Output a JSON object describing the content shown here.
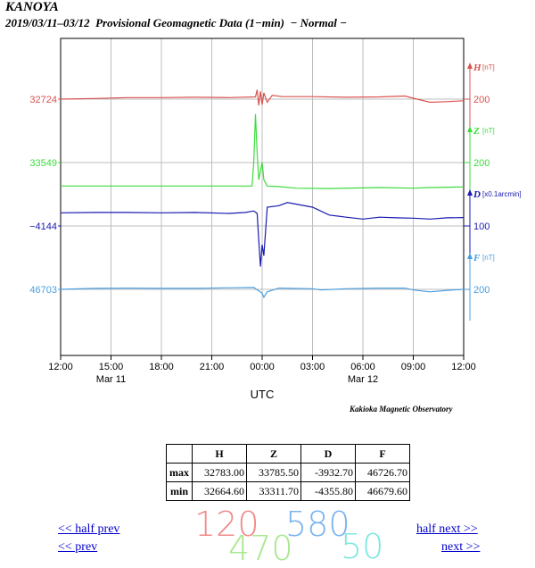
{
  "header": {
    "station": "KANOYA",
    "subtitle": "2019/03/11–03/12  Provisional Geomagnetic Data (1−min)  − Normal −"
  },
  "chart_data": {
    "type": "line",
    "xlabel": "UTC",
    "x_ticks": [
      "12:00",
      "15:00",
      "18:00",
      "21:00",
      "00:00",
      "03:00",
      "06:00",
      "09:00",
      "12:00"
    ],
    "x_date_labels": [
      {
        "tick_index": 1,
        "label": "Mar 11"
      },
      {
        "tick_index": 6,
        "label": "Mar 12"
      }
    ],
    "x_range_hours": [
      0,
      24
    ],
    "series": [
      {
        "name": "H",
        "unit": "[nT]",
        "baseline_label": "32724",
        "scale_label": "200",
        "color": "#d9534f",
        "points": [
          [
            0,
            0.0
          ],
          [
            2,
            2
          ],
          [
            4,
            5
          ],
          [
            6,
            5
          ],
          [
            8,
            6
          ],
          [
            10,
            5
          ],
          [
            11.6,
            7
          ],
          [
            11.7,
            30
          ],
          [
            11.8,
            -20
          ],
          [
            11.9,
            25
          ],
          [
            12.0,
            -18
          ],
          [
            12.1,
            20
          ],
          [
            12.3,
            -10
          ],
          [
            12.6,
            12
          ],
          [
            13.2,
            8
          ],
          [
            15,
            8
          ],
          [
            17,
            6
          ],
          [
            19,
            7
          ],
          [
            20.5,
            10
          ],
          [
            21,
            3
          ],
          [
            22,
            -10
          ],
          [
            23,
            -8
          ],
          [
            24,
            -5
          ]
        ]
      },
      {
        "name": "Z",
        "unit": "[nT]",
        "baseline_label": "33549",
        "scale_label": "200",
        "color": "#3ddb3d",
        "points": [
          [
            0,
            -75
          ],
          [
            4,
            -75
          ],
          [
            8,
            -75
          ],
          [
            11.4,
            -75
          ],
          [
            11.5,
            0
          ],
          [
            11.6,
            155
          ],
          [
            11.7,
            30
          ],
          [
            11.8,
            -55
          ],
          [
            12.0,
            0
          ],
          [
            12.1,
            -55
          ],
          [
            12.3,
            -75
          ],
          [
            13,
            -77
          ],
          [
            14,
            -82
          ],
          [
            16,
            -83
          ],
          [
            19,
            -80
          ],
          [
            21,
            -82
          ],
          [
            22,
            -80
          ],
          [
            24,
            -78
          ]
        ]
      },
      {
        "name": "D",
        "unit": "[x0.1arcmin]",
        "baseline_label": "−4144",
        "scale_label": "100",
        "color": "#1a1ab0",
        "points": [
          [
            0,
            42
          ],
          [
            2,
            43
          ],
          [
            4,
            43
          ],
          [
            6,
            42
          ],
          [
            8,
            43
          ],
          [
            10,
            40
          ],
          [
            11,
            43
          ],
          [
            11.5,
            48
          ],
          [
            11.7,
            40
          ],
          [
            11.8,
            -45
          ],
          [
            11.9,
            -130
          ],
          [
            12.0,
            -60
          ],
          [
            12.1,
            -95
          ],
          [
            12.3,
            60
          ],
          [
            13,
            65
          ],
          [
            13.5,
            75
          ],
          [
            15,
            60
          ],
          [
            16,
            35
          ],
          [
            17,
            28
          ],
          [
            18,
            22
          ],
          [
            19,
            28
          ],
          [
            20,
            26
          ],
          [
            21,
            25
          ],
          [
            22,
            22
          ],
          [
            23,
            26
          ],
          [
            24,
            27
          ]
        ]
      },
      {
        "name": "F",
        "unit": "[nT]",
        "baseline_label": "46703",
        "scale_label": "200",
        "color": "#4a9ee0",
        "points": [
          [
            0,
            0
          ],
          [
            2,
            3
          ],
          [
            4,
            4
          ],
          [
            6,
            3
          ],
          [
            8,
            3
          ],
          [
            10,
            5
          ],
          [
            11.5,
            6
          ],
          [
            11.8,
            -5
          ],
          [
            12.0,
            -12
          ],
          [
            12.1,
            -25
          ],
          [
            12.3,
            -8
          ],
          [
            13,
            4
          ],
          [
            15,
            2
          ],
          [
            15.5,
            -2
          ],
          [
            17,
            2
          ],
          [
            19,
            4
          ],
          [
            20.5,
            4
          ],
          [
            21,
            -2
          ],
          [
            22,
            -8
          ],
          [
            23,
            -3
          ],
          [
            24,
            0
          ]
        ]
      }
    ]
  },
  "credit": "Kakioka Magnetic Observatory",
  "stats_table": {
    "columns": [
      "H",
      "Z",
      "D",
      "F"
    ],
    "rows": [
      {
        "label": "max",
        "values": [
          "32783.00",
          "33785.50",
          "-3932.70",
          "46726.70"
        ]
      },
      {
        "label": "min",
        "values": [
          "32664.60",
          "33311.70",
          "-4355.80",
          "46679.60"
        ]
      }
    ]
  },
  "nav": {
    "half_prev": "<< half prev",
    "prev": "<< prev",
    "half_next": "half next >>",
    "next": "next >>"
  },
  "captcha": {
    "items": [
      {
        "text": "120",
        "color": "#f08a8a"
      },
      {
        "text": "470",
        "color": "#a8e890"
      },
      {
        "text": "580",
        "color": "#7ab4ee"
      },
      {
        "text": "50",
        "color": "#7ee8e0"
      }
    ]
  }
}
